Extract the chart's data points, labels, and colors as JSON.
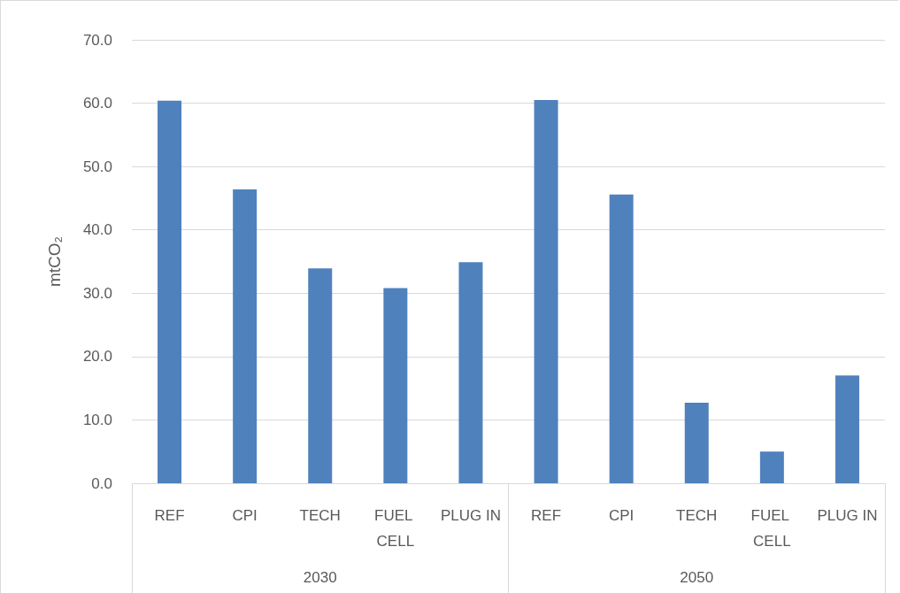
{
  "chart_data": {
    "type": "bar",
    "ylabel": "mtCO₂",
    "categories": [
      "REF",
      "CPI",
      "TECH",
      "FUEL CELL",
      "PLUG IN",
      "REF",
      "CPI",
      "TECH",
      "FUEL CELL",
      "PLUG IN"
    ],
    "values": [
      60.4,
      46.4,
      33.9,
      30.8,
      34.9,
      60.5,
      45.6,
      12.7,
      5.0,
      17.0
    ],
    "color": "#4f81bd",
    "ylim": [
      0,
      70
    ],
    "yticks": [
      {
        "value": 0,
        "label": "0.0"
      },
      {
        "value": 10,
        "label": "10.0"
      },
      {
        "value": 20,
        "label": "20.0"
      },
      {
        "value": 30,
        "label": "30.0"
      },
      {
        "value": 40,
        "label": "40.0"
      },
      {
        "value": 50,
        "label": "50.0"
      },
      {
        "value": 60,
        "label": "60.0"
      },
      {
        "value": 70,
        "label": "70.0"
      }
    ],
    "annotations": [
      "2030",
      "2050"
    ],
    "grid": "y"
  }
}
